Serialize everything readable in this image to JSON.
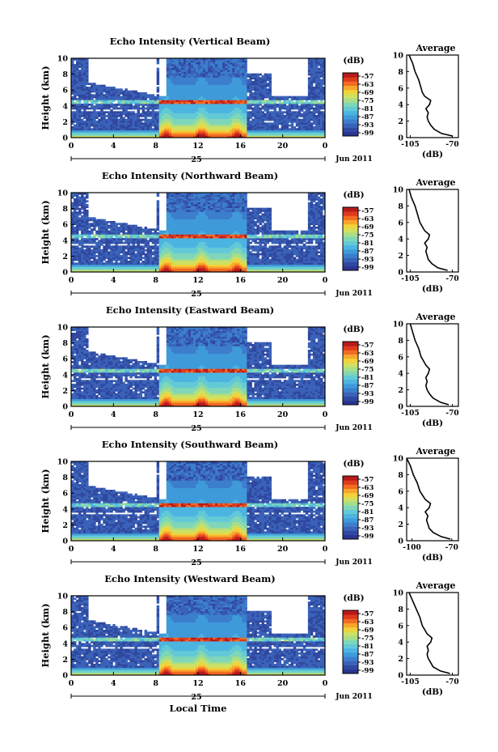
{
  "figure": {
    "xlabel": "Local Time",
    "date_label": "Jun 2011",
    "day_label": "25",
    "colorbar_unit": "(dB)",
    "profile_title": "Average",
    "profile_xlabel": "(dB)"
  },
  "chart_data": [
    {
      "type": "heatmap",
      "title": "Echo Intensity (Vertical Beam)",
      "ylabel": "Height (km)",
      "x_ticks": [
        "0",
        "4",
        "8",
        "12",
        "16",
        "20",
        "0"
      ],
      "y_ticks": [
        "0",
        "2",
        "4",
        "6",
        "8",
        "10"
      ],
      "xlim": [
        0,
        24
      ],
      "ylim": [
        0,
        10
      ],
      "colorbar_ticks": [
        "-57",
        "-63",
        "-69",
        "-75",
        "-81",
        "-87",
        "-93",
        "-99"
      ],
      "profile": {
        "x_ticks": [
          "-105",
          "-70"
        ],
        "y_ticks": [
          "0",
          "2",
          "4",
          "6",
          "8",
          "10"
        ],
        "xlim": [
          -108,
          -65
        ],
        "heights": [
          0.2,
          0.5,
          1.0,
          1.5,
          2.0,
          2.5,
          3.0,
          3.5,
          4.0,
          4.5,
          5.0,
          5.5,
          6.0,
          7.0,
          8.0,
          9.0,
          10.0
        ],
        "values": [
          -70,
          -79,
          -85,
          -88,
          -90,
          -91,
          -90,
          -92,
          -89,
          -88,
          -93,
          -95,
          -96,
          -98,
          -101,
          -103,
          -106
        ]
      }
    },
    {
      "type": "heatmap",
      "title": "Echo Intensity (Northward Beam)",
      "ylabel": "Height (km)",
      "x_ticks": [
        "0",
        "4",
        "8",
        "12",
        "16",
        "20",
        "0"
      ],
      "y_ticks": [
        "0",
        "2",
        "4",
        "6",
        "8",
        "10"
      ],
      "xlim": [
        0,
        24
      ],
      "ylim": [
        0,
        10
      ],
      "colorbar_ticks": [
        "-57",
        "-63",
        "-69",
        "-75",
        "-81",
        "-87",
        "-93",
        "-99"
      ],
      "profile": {
        "x_ticks": [
          "-105",
          "-70"
        ],
        "y_ticks": [
          "0",
          "2",
          "4",
          "6",
          "8",
          "10"
        ],
        "xlim": [
          -108,
          -65
        ],
        "heights": [
          0.2,
          0.5,
          1.0,
          1.5,
          2.0,
          2.5,
          3.0,
          3.5,
          4.0,
          4.5,
          5.0,
          5.5,
          6.0,
          7.0,
          8.0,
          9.0,
          10.0
        ],
        "values": [
          -74,
          -82,
          -87,
          -90,
          -91,
          -92,
          -91,
          -93,
          -90,
          -89,
          -93,
          -95,
          -97,
          -99,
          -101,
          -104,
          -106
        ]
      }
    },
    {
      "type": "heatmap",
      "title": "Echo Intensity (Eastward Beam)",
      "ylabel": "Height (km)",
      "x_ticks": [
        "0",
        "4",
        "8",
        "12",
        "16",
        "20",
        "0"
      ],
      "y_ticks": [
        "0",
        "2",
        "4",
        "6",
        "8",
        "10"
      ],
      "xlim": [
        0,
        24
      ],
      "ylim": [
        0,
        10
      ],
      "colorbar_ticks": [
        "-57",
        "-63",
        "-69",
        "-75",
        "-81",
        "-87",
        "-93",
        "-99"
      ],
      "profile": {
        "x_ticks": [
          "-105",
          "-70"
        ],
        "y_ticks": [
          "0",
          "2",
          "4",
          "6",
          "8",
          "10"
        ],
        "xlim": [
          -108,
          -65
        ],
        "heights": [
          0.2,
          0.5,
          1.0,
          1.5,
          2.0,
          2.5,
          3.0,
          3.5,
          4.0,
          4.5,
          5.0,
          5.5,
          6.0,
          7.0,
          8.0,
          9.0,
          10.0
        ],
        "values": [
          -73,
          -80,
          -86,
          -89,
          -91,
          -92,
          -91,
          -92,
          -90,
          -89,
          -92,
          -94,
          -96,
          -98,
          -101,
          -103,
          -105
        ]
      }
    },
    {
      "type": "heatmap",
      "title": "Echo Intensity (Southward Beam)",
      "ylabel": "Height (km)",
      "x_ticks": [
        "0",
        "4",
        "8",
        "12",
        "16",
        "20",
        "0"
      ],
      "y_ticks": [
        "0",
        "2",
        "4",
        "6",
        "8",
        "10"
      ],
      "xlim": [
        0,
        24
      ],
      "ylim": [
        0,
        10
      ],
      "colorbar_ticks": [
        "-57",
        "-63",
        "-69",
        "-75",
        "-81",
        "-87",
        "-93",
        "-99"
      ],
      "profile": {
        "x_ticks": [
          "-100",
          "-70"
        ],
        "y_ticks": [
          "0",
          "2",
          "4",
          "6",
          "8",
          "10"
        ],
        "xlim": [
          -104,
          -65
        ],
        "heights": [
          0.2,
          0.5,
          1.0,
          1.5,
          2.0,
          2.5,
          3.0,
          3.5,
          4.0,
          4.5,
          5.0,
          5.5,
          6.0,
          7.0,
          8.0,
          9.0,
          10.0
        ],
        "values": [
          -71,
          -78,
          -84,
          -87,
          -88,
          -89,
          -88,
          -90,
          -87,
          -86,
          -90,
          -92,
          -94,
          -96,
          -99,
          -101,
          -104
        ]
      }
    },
    {
      "type": "heatmap",
      "title": "Echo Intensity (Westward Beam)",
      "ylabel": "Height (km)",
      "x_ticks": [
        "0",
        "4",
        "8",
        "12",
        "16",
        "20",
        "0"
      ],
      "y_ticks": [
        "0",
        "2",
        "4",
        "6",
        "8",
        "10"
      ],
      "xlim": [
        0,
        24
      ],
      "ylim": [
        0,
        10
      ],
      "colorbar_ticks": [
        "-57",
        "-63",
        "-69",
        "-75",
        "-81",
        "-87",
        "-93",
        "-99"
      ],
      "profile": {
        "x_ticks": [
          "-105",
          "-70"
        ],
        "y_ticks": [
          "0",
          "2",
          "4",
          "6",
          "8",
          "10"
        ],
        "xlim": [
          -108,
          -65
        ],
        "heights": [
          0.2,
          0.5,
          1.0,
          1.5,
          2.0,
          2.5,
          3.0,
          3.5,
          4.0,
          4.5,
          5.0,
          5.5,
          6.0,
          7.0,
          8.0,
          9.0,
          10.0
        ],
        "values": [
          -72,
          -80,
          -86,
          -88,
          -90,
          -91,
          -90,
          -91,
          -88,
          -87,
          -91,
          -93,
          -95,
          -97,
          -100,
          -103,
          -106
        ]
      }
    }
  ]
}
